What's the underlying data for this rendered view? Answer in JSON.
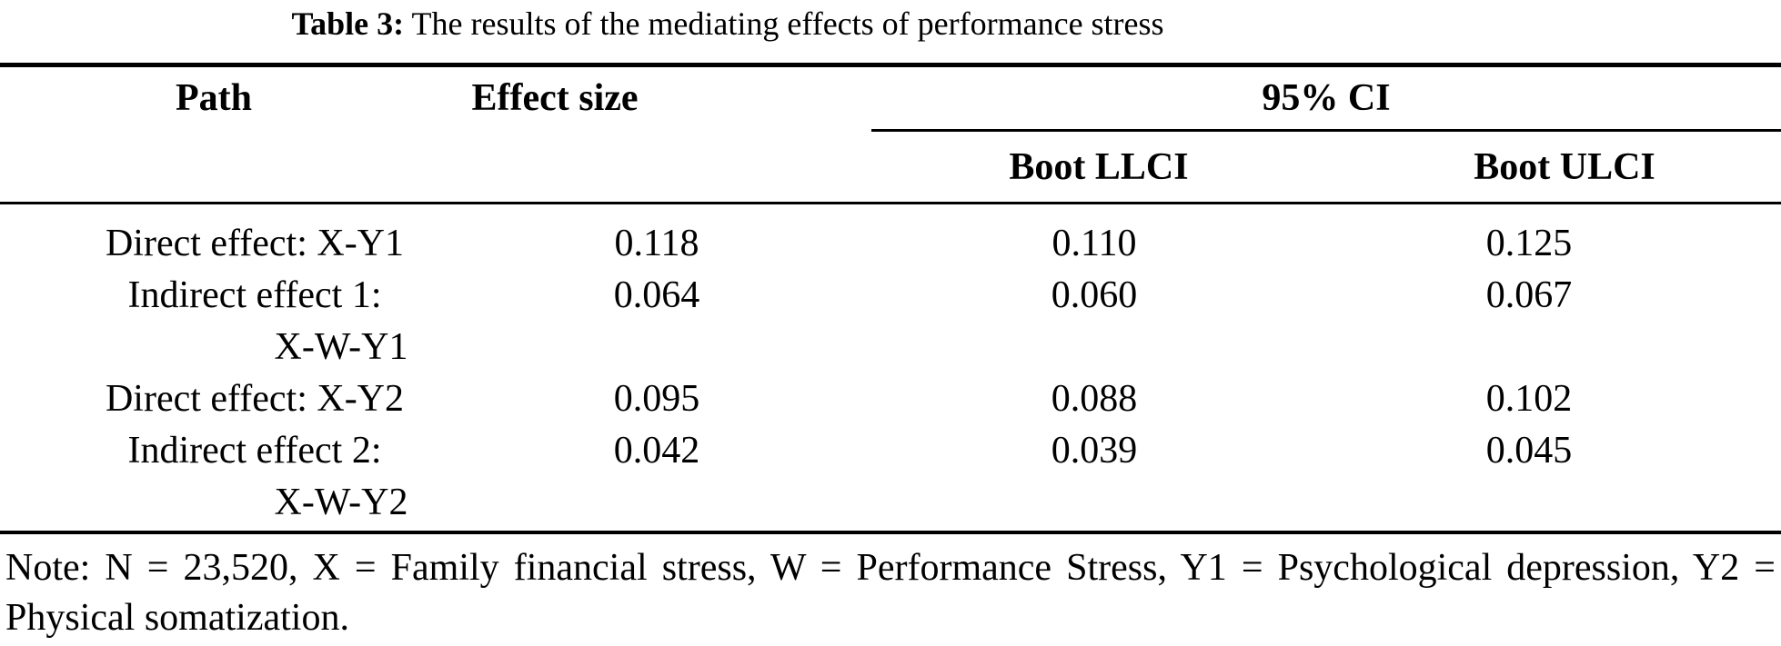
{
  "title": {
    "label": "Table 3:",
    "text": " The results of the mediating effects of performance stress"
  },
  "table": {
    "headers": {
      "path": "Path",
      "effect_size": "Effect size",
      "ci": "95% CI",
      "boot_llci": "Boot LLCI",
      "boot_ulci": "Boot ULCI"
    },
    "rows": [
      {
        "path": "Direct effect: X-Y1",
        "path_line2": "",
        "effect_size": "0.118",
        "boot_llci": "0.110",
        "boot_ulci": "0.125"
      },
      {
        "path": "Indirect effect 1:",
        "path_line2": "X-W-Y1",
        "effect_size": "0.064",
        "boot_llci": "0.060",
        "boot_ulci": "0.067"
      },
      {
        "path": "Direct effect: X-Y2",
        "path_line2": "",
        "effect_size": "0.095",
        "boot_llci": "0.088",
        "boot_ulci": "0.102"
      },
      {
        "path": "Indirect effect 2:",
        "path_line2": "X-W-Y2",
        "effect_size": "0.042",
        "boot_llci": "0.039",
        "boot_ulci": "0.045"
      }
    ]
  },
  "note": {
    "line1": "Note: N = 23,520, X = Family financial stress, W = Performance Stress, Y1 = Psychological depression, Y2 =",
    "line2": "Physical somatization."
  }
}
